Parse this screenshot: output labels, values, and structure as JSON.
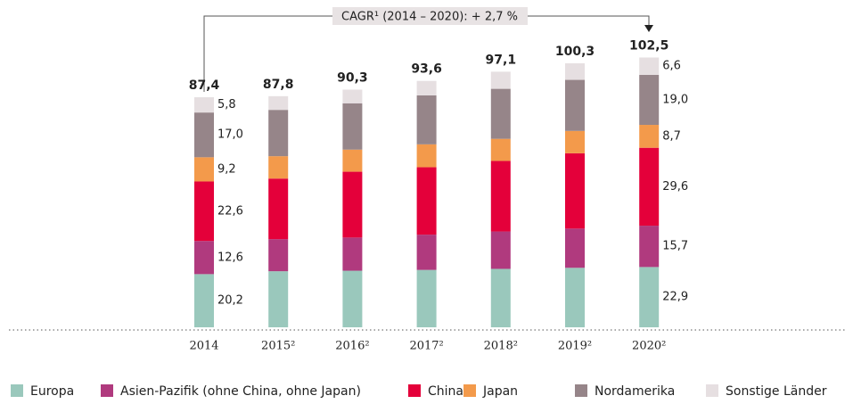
{
  "chart_data": {
    "type": "stacked_bar",
    "annotation": "CAGR¹ (2014 – 2020): + 2,7 %",
    "categories": [
      "2014",
      "2015²",
      "2016²",
      "2017²",
      "2018²",
      "2019²",
      "2020²"
    ],
    "totals": [
      87.4,
      87.8,
      90.3,
      93.6,
      97.1,
      100.3,
      102.5
    ],
    "total_labels": [
      "87,4",
      "87,8",
      "90,3",
      "93,6",
      "97,1",
      "100,3",
      "102,5"
    ],
    "series": [
      {
        "name": "Europa",
        "color": "#9ac8bc",
        "values": [
          20.2,
          21.3,
          21.5,
          21.8,
          22.2,
          22.6,
          22.9
        ],
        "value_labels": [
          "20,2",
          null,
          null,
          null,
          null,
          null,
          "22,9"
        ]
      },
      {
        "name": "Asien-Pazifik (ohne China, ohne Japan)",
        "color": "#b03a7e",
        "values": [
          12.6,
          12.2,
          12.6,
          13.4,
          14.2,
          14.9,
          15.7
        ],
        "value_labels": [
          "12,6",
          null,
          null,
          null,
          null,
          null,
          "15,7"
        ]
      },
      {
        "name": "China",
        "color": "#e4003a",
        "values": [
          22.6,
          23.0,
          25.0,
          25.6,
          26.8,
          28.6,
          29.6
        ],
        "value_labels": [
          "22,6",
          null,
          null,
          null,
          null,
          null,
          "29,6"
        ]
      },
      {
        "name": "Japan",
        "color": "#f39a4b",
        "values": [
          9.2,
          8.5,
          8.4,
          8.7,
          8.4,
          8.5,
          8.7
        ],
        "value_labels": [
          "9,2",
          null,
          null,
          null,
          null,
          null,
          "8,7"
        ]
      },
      {
        "name": "Nordamerika",
        "color": "#968589",
        "values": [
          17.0,
          17.6,
          17.6,
          18.6,
          19.0,
          19.4,
          19.0
        ],
        "value_labels": [
          "17,0",
          null,
          null,
          null,
          null,
          null,
          "19,0"
        ]
      },
      {
        "name": "Sonstige Länder",
        "color": "#e6dfe1",
        "values": [
          5.8,
          5.2,
          5.2,
          5.5,
          6.5,
          6.3,
          6.6
        ],
        "value_labels": [
          "5,8",
          null,
          null,
          null,
          null,
          null,
          "6,6"
        ]
      }
    ],
    "ylim": [
      0,
      124
    ]
  }
}
